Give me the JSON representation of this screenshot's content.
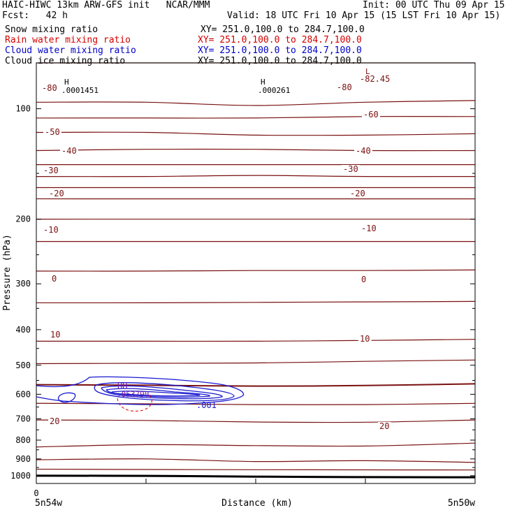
{
  "header": {
    "title_left": "HAIC-HIWC 13km ARW-GFS init   NCAR/MMM",
    "init": "Init: 00 UTC Thu 09 Apr 15",
    "fcst": "Fcst:   42 h",
    "valid": "Valid: 18 UTC Fri 10 Apr 15 (15 LST Fri 10 Apr 15)"
  },
  "fields": [
    {
      "name": "Snow mixing ratio",
      "xy": "XY= 251.0,100.0 to 284.7,100.0",
      "color": "#000000"
    },
    {
      "name": "Rain water mixing ratio",
      "xy": "XY= 251.0,100.0 to 284.7,100.0",
      "color": "#d40000"
    },
    {
      "name": "Cloud water mixing ratio",
      "xy": "XY= 251.0,100.0 to 284.7,100.0",
      "color": "#0000c8"
    },
    {
      "name": "Cloud ice mixing ratio",
      "xy": "XY= 251.0,100.0 to 284.7,100.0",
      "color": "#000000"
    }
  ],
  "colors": {
    "temperature": "#7a1010",
    "cloud_water": "#1a1ad0",
    "rain": "#d40000",
    "ground": "#000000",
    "frame": "#000000"
  },
  "chart_data": {
    "type": "contour",
    "xlabel": "Distance (km)",
    "ylabel": "Pressure (hPa)",
    "x_tick_labels": [
      "0"
    ],
    "x_end_labels": [
      "5n54w",
      "5n50w"
    ],
    "ylim": [
      1050,
      75
    ],
    "yscale": "log",
    "y_ticks": [
      100,
      200,
      300,
      400,
      500,
      600,
      700,
      800,
      900,
      1000
    ],
    "temperature_contours": [
      {
        "label": "-80",
        "p": [
          75,
          75,
          75,
          75,
          75
        ]
      },
      {
        "label": "",
        "p": [
          96,
          96,
          98,
          96,
          95
        ]
      },
      {
        "label": "-80",
        "p": [
          106,
          106,
          106,
          105,
          105
        ]
      },
      {
        "label": "",
        "p": [
          116,
          116,
          118,
          118,
          117
        ]
      },
      {
        "label": "",
        "p": [
          130,
          129,
          129,
          130,
          130
        ]
      },
      {
        "label": "",
        "p": [
          142,
          142,
          142,
          142,
          142
        ]
      },
      {
        "label": "",
        "p": [
          153,
          153,
          152,
          153,
          153
        ]
      },
      {
        "label": "",
        "p": [
          164,
          164,
          164,
          164,
          164
        ]
      },
      {
        "label": "-60",
        "p": [
          176,
          176,
          176,
          176,
          176
        ]
      },
      {
        "label": "-50",
        "p": [
          200,
          200,
          200,
          200,
          200
        ]
      },
      {
        "label": "-40",
        "p": [
          230,
          230,
          230,
          230,
          230
        ]
      },
      {
        "label": "-30",
        "p": [
          277,
          277,
          276,
          276,
          275
        ]
      },
      {
        "label": "-20",
        "p": [
          338,
          338,
          337,
          336,
          335
        ]
      },
      {
        "label": "-10",
        "p": [
          430,
          430,
          430,
          428,
          425
        ]
      },
      {
        "label": "",
        "p": [
          495,
          494,
          493,
          488,
          484
        ]
      },
      {
        "label": "0",
        "p": [
          565,
          567,
          570,
          568,
          562
        ]
      },
      {
        "label": "",
        "p": [
          635,
          637,
          640,
          640,
          635
        ]
      },
      {
        "label": "10",
        "p": [
          705,
          707,
          714,
          715,
          705
        ]
      },
      {
        "label": "",
        "p": [
          835,
          823,
          828,
          830,
          815
        ]
      },
      {
        "label": "20",
        "p": [
          905,
          900,
          915,
          910,
          920
        ]
      },
      {
        "label": "",
        "p": [
          960,
          962,
          963,
          964,
          965
        ]
      }
    ],
    "temperature_labels": [
      "-82.45",
      "-80",
      "-80",
      "-60",
      "-50",
      "-40",
      "-40",
      "-30",
      "-30",
      "-20",
      "-20",
      "-10",
      "-10",
      "0",
      "0",
      "10",
      "10",
      "20",
      "20"
    ],
    "extrema": [
      {
        "marker": "H",
        "value": ".0001451"
      },
      {
        "marker": "H",
        "value": ".000261"
      },
      {
        "marker": "L",
        "value": "-82.45"
      },
      {
        "marker": "HH",
        "value": ".053790"
      }
    ],
    "cloud_water_label": ".001",
    "surface_pressure": [
      1000,
      1001,
      1006,
      1009,
      1010
    ]
  }
}
